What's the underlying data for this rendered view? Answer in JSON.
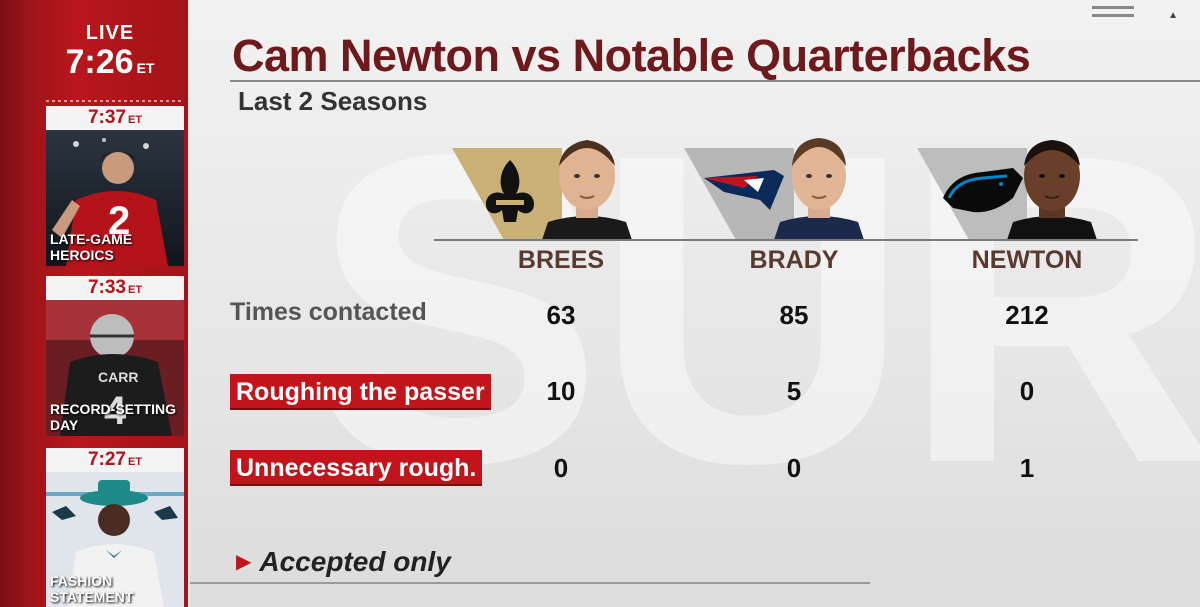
{
  "sidebar": {
    "live_label": "LIVE",
    "live_time": "7:26",
    "live_tz": "ET",
    "clips": [
      {
        "time": "7:37",
        "tz": "ET",
        "title_line1": "LATE-GAME",
        "title_line2": "HEROICS"
      },
      {
        "time": "7:33",
        "tz": "ET",
        "title_line1": "RECORD-SETTING",
        "title_line2": "DAY"
      },
      {
        "time": "7:27",
        "tz": "ET",
        "title_line1": "FASHION",
        "title_line2": "STATEMENT"
      }
    ]
  },
  "graphic": {
    "title": "Cam Newton vs Notable Quarterbacks",
    "subtitle": "Last 2 Seasons",
    "players": [
      {
        "name": "BREES",
        "team_color": "#c9b074",
        "jersey": "#1a1a1a"
      },
      {
        "name": "BRADY",
        "team_color": "#b7b7b7",
        "jersey": "#1b2a4a"
      },
      {
        "name": "NEWTON",
        "team_color": "#bdbdbd",
        "jersey": "#111111"
      }
    ],
    "rows": [
      {
        "label": "Times contacted",
        "highlight": false,
        "values": [
          "63",
          "85",
          "212"
        ]
      },
      {
        "label": "Roughing the passer",
        "highlight": true,
        "values": [
          "10",
          "5",
          "0"
        ]
      },
      {
        "label": "Unnecessary rough.",
        "highlight": true,
        "values": [
          "0",
          "0",
          "1"
        ]
      }
    ],
    "footnote": "Accepted only"
  },
  "colors": {
    "accent_red": "#c2141b",
    "title_maroon": "#6e1a1d"
  }
}
